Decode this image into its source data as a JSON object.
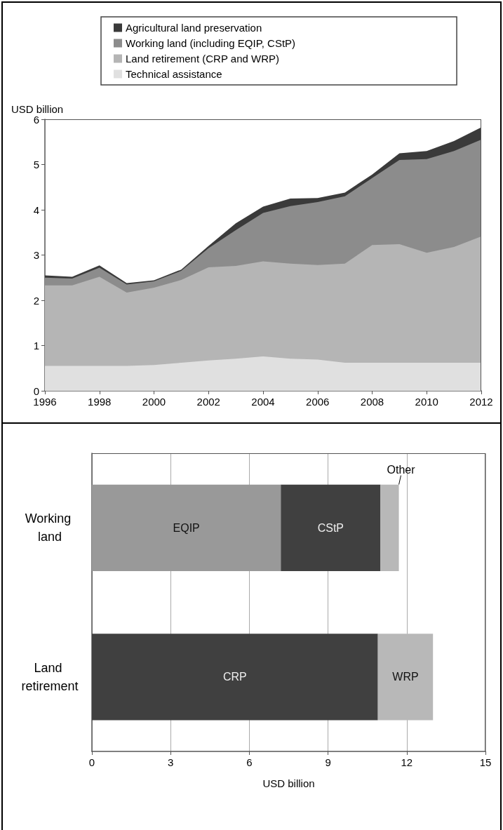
{
  "chart_data": [
    {
      "type": "area",
      "stacked": true,
      "ylabel": "USD billion",
      "legend": "top",
      "grid": false,
      "x": [
        1996,
        1997,
        1998,
        1999,
        2000,
        2001,
        2002,
        2003,
        2004,
        2005,
        2006,
        2007,
        2008,
        2009,
        2010,
        2011,
        2012
      ],
      "xlim": [
        1996,
        2012
      ],
      "xticks": [
        1996,
        1998,
        2000,
        2002,
        2004,
        2006,
        2008,
        2010,
        2012
      ],
      "ylim": [
        0,
        6
      ],
      "yticks": [
        0,
        1,
        2,
        3,
        4,
        5,
        6
      ],
      "series": [
        {
          "name": "Technical assistance",
          "color": "#e0e0e0",
          "values": [
            0.55,
            0.55,
            0.55,
            0.55,
            0.57,
            0.62,
            0.67,
            0.71,
            0.76,
            0.71,
            0.69,
            0.62,
            0.62,
            0.62,
            0.62,
            0.62,
            0.62
          ]
        },
        {
          "name": "Land retirement (CRP and WRP)",
          "color": "#b5b5b5",
          "values": [
            1.78,
            1.78,
            1.97,
            1.62,
            1.71,
            1.83,
            2.06,
            2.05,
            2.1,
            2.1,
            2.09,
            2.19,
            2.6,
            2.62,
            2.43,
            2.56,
            2.79
          ]
        },
        {
          "name": "Working land (including EQIP, CStP)",
          "color": "#8c8c8c",
          "values": [
            0.17,
            0.15,
            0.2,
            0.18,
            0.14,
            0.2,
            0.42,
            0.79,
            1.07,
            1.27,
            1.39,
            1.49,
            1.48,
            1.86,
            2.07,
            2.12,
            2.14
          ]
        },
        {
          "name": "Agricultural land preservation",
          "color": "#3a3a3a",
          "values": [
            0.05,
            0.04,
            0.05,
            0.03,
            0.02,
            0.03,
            0.05,
            0.15,
            0.14,
            0.17,
            0.09,
            0.08,
            0.08,
            0.15,
            0.18,
            0.22,
            0.27
          ]
        }
      ]
    },
    {
      "type": "bar",
      "orientation": "horizontal",
      "stacked": true,
      "xlabel": "USD billion",
      "grid": "x",
      "legend": false,
      "categories": [
        "Working land",
        "Land retirement"
      ],
      "xlim": [
        0,
        15
      ],
      "xticks": [
        0,
        3,
        6,
        9,
        12,
        15
      ],
      "series": [
        {
          "name": "EQIP",
          "color": "#999999",
          "values": [
            7.2,
            null
          ]
        },
        {
          "name": "CStP",
          "color": "#404040",
          "values": [
            3.8,
            null
          ]
        },
        {
          "name": "Other",
          "color": "#b8b8b8",
          "values": [
            0.7,
            null
          ]
        },
        {
          "name": "CRP",
          "color": "#404040",
          "values": [
            null,
            10.9
          ]
        },
        {
          "name": "WRP",
          "color": "#b8b8b8",
          "values": [
            null,
            2.1
          ]
        }
      ]
    }
  ]
}
